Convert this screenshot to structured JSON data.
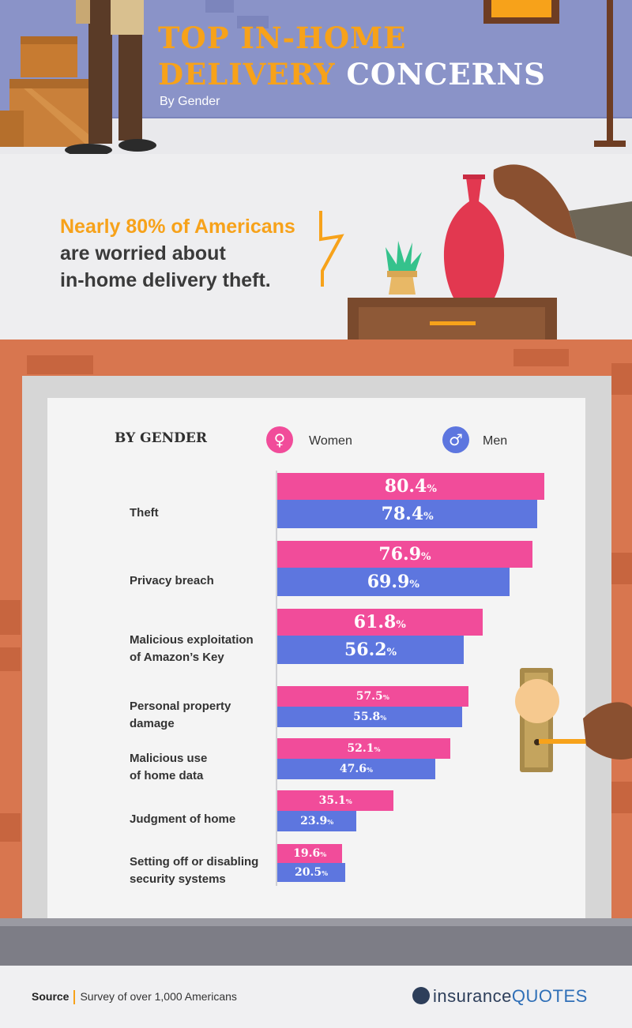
{
  "header": {
    "title_line1": "TOP IN-HOME",
    "title_line2_orange": "DELIVERY",
    "title_line2_white": "CONCERNS",
    "subtitle": "By Gender"
  },
  "intro": {
    "highlight": "Nearly 80% of Americans",
    "line2": "are worried about",
    "line3": "in-home delivery theft."
  },
  "legend": {
    "heading": "BY GENDER",
    "women": "Women",
    "men": "Men",
    "women_color": "#f14c9a",
    "men_color": "#5d76df"
  },
  "chart_data": {
    "type": "bar",
    "orientation": "horizontal",
    "categories": [
      "Theft",
      "Privacy breach",
      "Malicious exploitation of Amazon’s Key",
      "Personal property damage",
      "Malicious use of home data",
      "Judgment of home",
      "Setting off or disabling security systems"
    ],
    "category_lines": [
      [
        "Theft"
      ],
      [
        "Privacy breach"
      ],
      [
        "Malicious exploitation",
        "of Amazon’s Key"
      ],
      [
        "Personal property",
        "damage"
      ],
      [
        "Malicious use",
        "of home data"
      ],
      [
        "Judgment of home"
      ],
      [
        "Setting off or disabling",
        "security systems"
      ]
    ],
    "series": [
      {
        "name": "Women",
        "values": [
          80.4,
          76.9,
          61.8,
          57.5,
          52.1,
          35.1,
          19.6
        ]
      },
      {
        "name": "Men",
        "values": [
          78.4,
          69.9,
          56.2,
          55.8,
          47.6,
          23.9,
          20.5
        ]
      }
    ],
    "value_labels": {
      "Women": [
        "80.4",
        "76.9",
        "61.8",
        "57.5",
        "52.1",
        "35.1",
        "19.6"
      ],
      "Men": [
        "78.4",
        "69.9",
        "56.2",
        "55.8",
        "47.6",
        "23.9",
        "20.5"
      ]
    },
    "unit": "%",
    "xlim": [
      0,
      100
    ],
    "grid": false
  },
  "footer": {
    "source_label": "Source",
    "source_text": "Survey of over 1,000 Americans",
    "brand_a": "insurance",
    "brand_b": "QUOTES"
  }
}
